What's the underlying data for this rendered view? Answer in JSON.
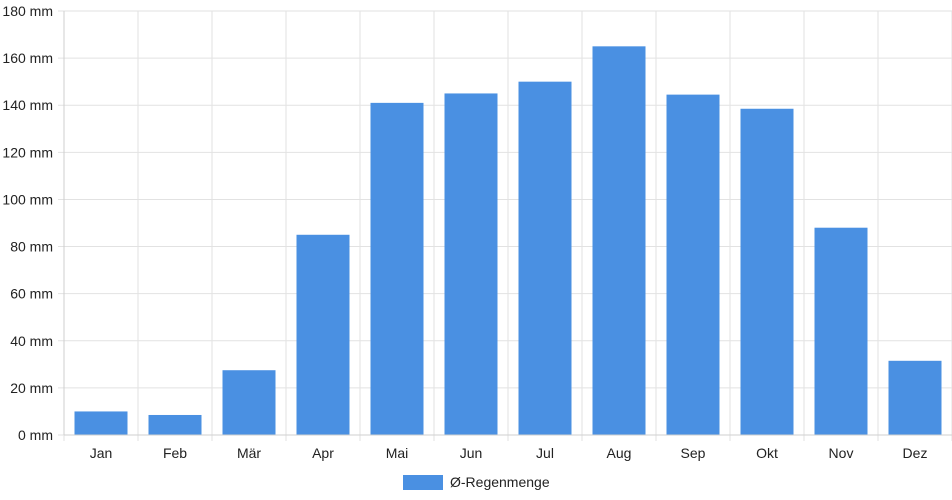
{
  "chart_data": {
    "type": "bar",
    "categories": [
      "Jan",
      "Feb",
      "Mär",
      "Apr",
      "Mai",
      "Jun",
      "Jul",
      "Aug",
      "Sep",
      "Okt",
      "Nov",
      "Dez"
    ],
    "series": [
      {
        "name": "Ø-Regenmenge",
        "values": [
          10,
          8.5,
          27.5,
          85,
          141,
          145,
          150,
          165,
          144.5,
          138.5,
          88,
          31.5
        ]
      }
    ],
    "ylim": [
      0,
      180
    ],
    "yticks": [
      0,
      20,
      40,
      60,
      80,
      100,
      120,
      140,
      160,
      180
    ],
    "ytick_labels": [
      "0 mm",
      "20 mm",
      "40 mm",
      "60 mm",
      "80 mm",
      "100 mm",
      "120 mm",
      "140 mm",
      "160 mm",
      "180 mm"
    ],
    "grid": true,
    "legend_position": "bottom",
    "colors": {
      "bar": "#4a90e2",
      "grid": "#e2e2e2",
      "axis": "#cfcfcf"
    }
  }
}
